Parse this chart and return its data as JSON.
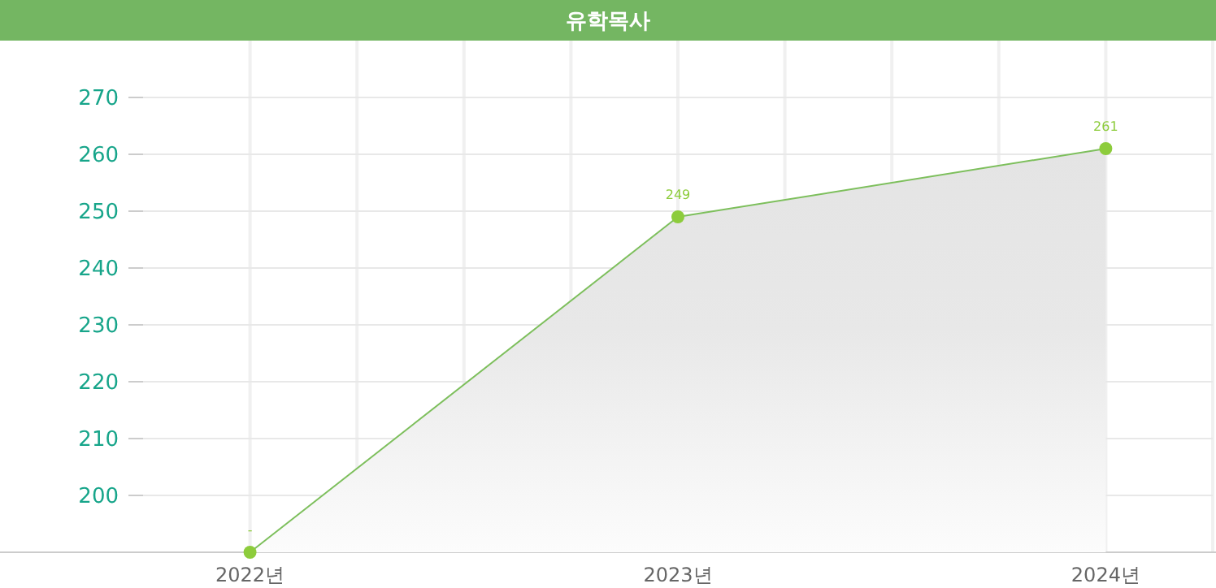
{
  "chart_data": {
    "type": "area",
    "title": "유학목사",
    "categories": [
      "2022년",
      "2023년",
      "2024년"
    ],
    "series": [
      {
        "color": "#7dbf5c",
        "values": [
          190,
          249,
          261
        ],
        "value_labels": [
          "-",
          "249",
          "261"
        ]
      }
    ],
    "ylim": [
      190,
      280
    ],
    "yticks": [
      200,
      210,
      220,
      230,
      240,
      250,
      260,
      270
    ],
    "grid": true,
    "marker": "circle"
  }
}
